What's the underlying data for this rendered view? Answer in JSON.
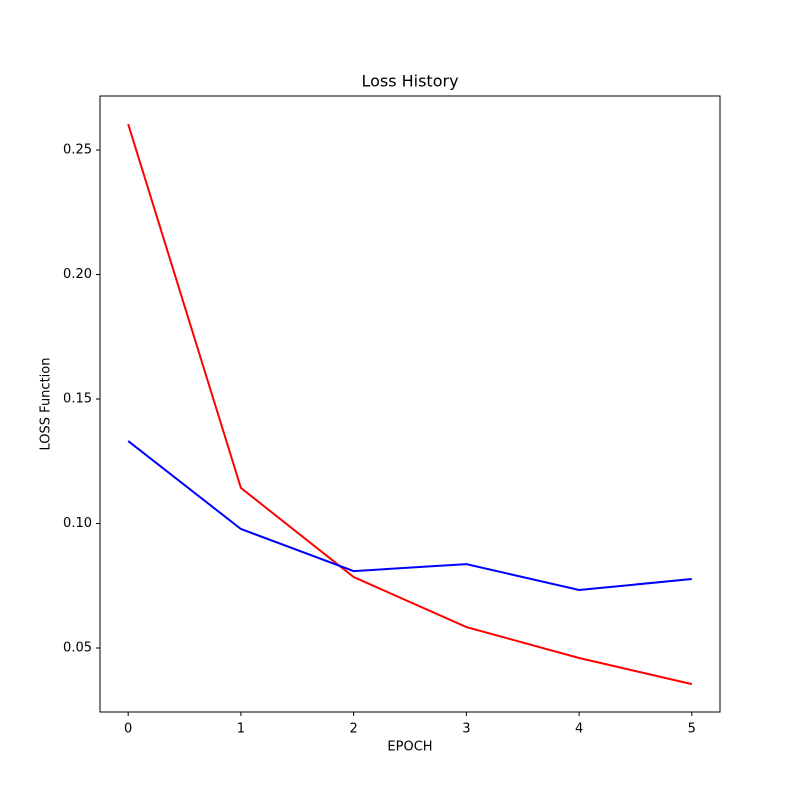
{
  "chart_data": {
    "type": "line",
    "title": "Loss History",
    "x_label": "EPOCH",
    "y_label": "LOSS Function",
    "x": [
      0,
      1,
      2,
      3,
      4,
      5
    ],
    "series": [
      {
        "color": "#ff0000",
        "values": [
          0.2604,
          0.1143,
          0.0785,
          0.0584,
          0.046,
          0.0355
        ]
      },
      {
        "color": "#0000ff",
        "values": [
          0.1331,
          0.0978,
          0.0809,
          0.0837,
          0.0733,
          0.0777
        ]
      }
    ],
    "xlim": [
      -0.25,
      5.25
    ],
    "xticks": [
      0,
      1,
      2,
      3,
      4,
      5
    ],
    "ylim": [
      0.0243,
      0.2717
    ],
    "yticks": [
      0.05,
      {
        "value": 0.1,
        "label": "0.10"
      },
      0.15,
      {
        "value": 0.2,
        "label": "0.20"
      },
      0.25
    ],
    "grid": false
  }
}
